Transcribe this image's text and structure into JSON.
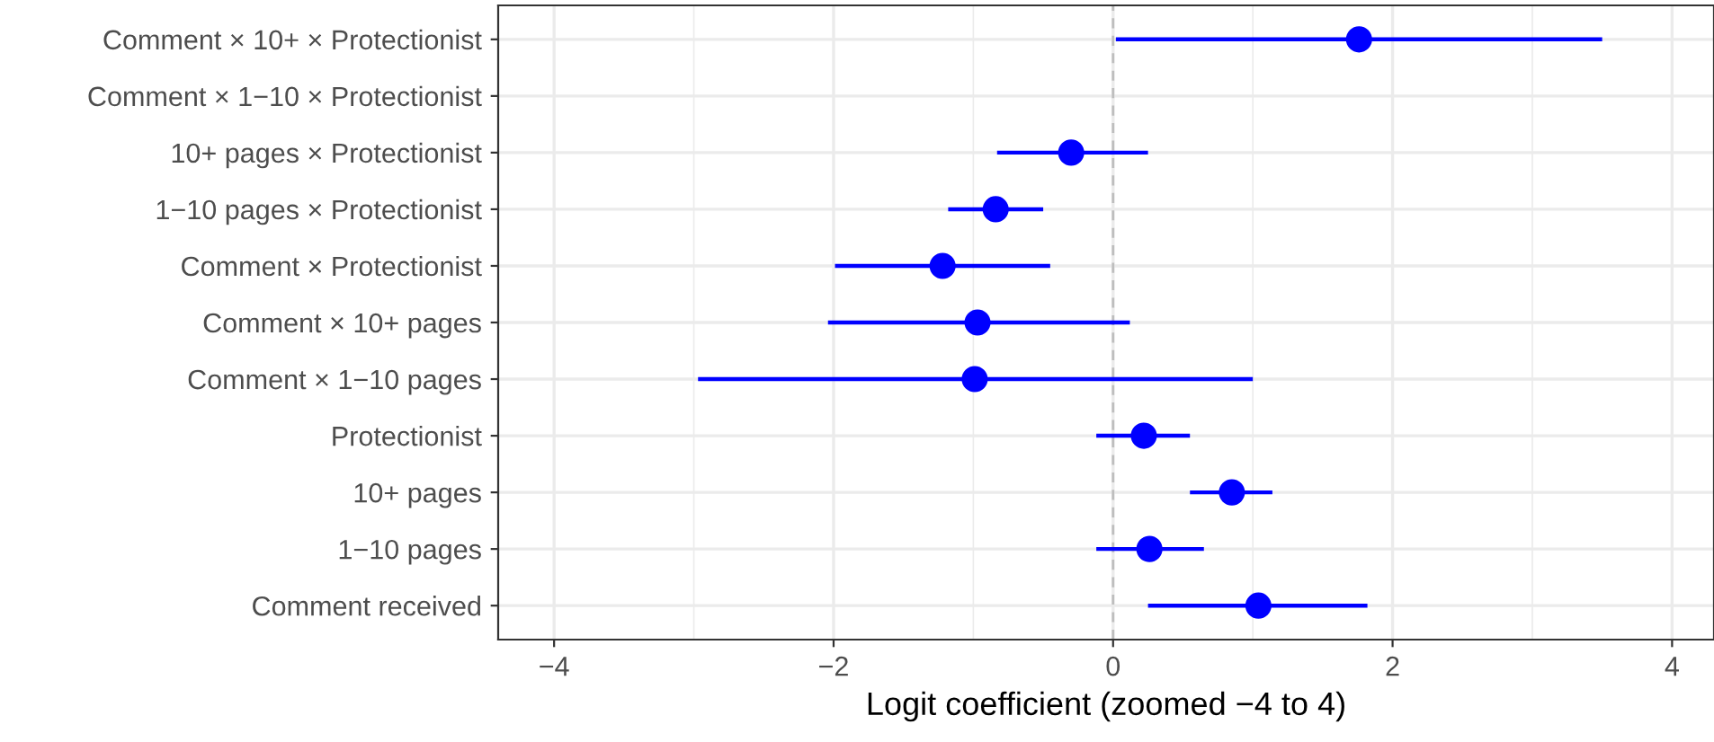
{
  "chart_data": {
    "type": "scatter",
    "orientation": "horizontal",
    "xlabel": "Logit coefficient (zoomed −4 to 4)",
    "categories": [
      "Comment × 10+ × Protectionist",
      "Comment × 1−10 × Protectionist",
      "10+ pages × Protectionist",
      "1−10 pages × Protectionist",
      "Comment × Protectionist",
      "Comment × 10+ pages",
      "Comment × 1−10 pages",
      "Protectionist",
      "10+ pages",
      "1−10 pages",
      "Comment received"
    ],
    "series": [
      {
        "color": "#0000ff",
        "values": [
          1.76,
          null,
          -0.3,
          -0.84,
          -1.22,
          -0.97,
          -0.99,
          0.22,
          0.85,
          0.26,
          1.04
        ],
        "errors": [
          [
            0.02,
            3.5
          ],
          null,
          [
            -0.83,
            0.25
          ],
          [
            -1.18,
            -0.5
          ],
          [
            -1.99,
            -0.45
          ],
          [
            -2.04,
            0.12
          ],
          [
            -2.97,
            1.0
          ],
          [
            -0.12,
            0.55
          ],
          [
            0.55,
            1.14
          ],
          [
            -0.12,
            0.65
          ],
          [
            0.25,
            1.82
          ]
        ]
      }
    ],
    "xlim": [
      -4.4,
      4.3
    ],
    "xticks": [
      -4,
      {
        "value": -3,
        "label": null
      },
      -2,
      {
        "value": -1,
        "label": null
      },
      0,
      {
        "value": 1,
        "label": null
      },
      2,
      {
        "value": 3,
        "label": null
      },
      4
    ],
    "ref_lines": [
      {
        "axis": "x",
        "value": 0,
        "color": "#bebebe",
        "line_style": "dashed"
      }
    ],
    "grid": true,
    "marker": "circle",
    "legend": false
  }
}
